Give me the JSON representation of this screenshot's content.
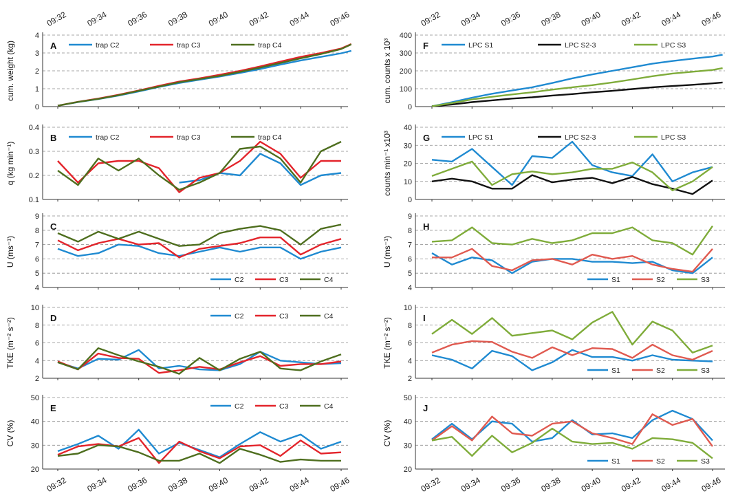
{
  "chart_data": [
    {
      "panel": "A",
      "type": "line",
      "ylabel": "cum. weight (kg)",
      "ylim": [
        0,
        4
      ],
      "yticks": [
        0,
        1,
        2,
        3,
        4
      ],
      "legend": "top",
      "x": [
        "09:32",
        "09:33",
        "09:34",
        "09:35",
        "09:36",
        "09:37",
        "09:38",
        "09:39",
        "09:40",
        "09:41",
        "09:42",
        "09:43",
        "09:44",
        "09:45",
        "09:46",
        "09:46.5"
      ],
      "series": [
        {
          "name": "trap C2",
          "color": "#1f8ad1",
          "values": [
            0.05,
            0.25,
            0.42,
            0.62,
            0.85,
            1.1,
            1.32,
            1.5,
            1.68,
            1.88,
            2.1,
            2.35,
            2.58,
            2.78,
            2.98,
            3.12
          ]
        },
        {
          "name": "trap C3",
          "color": "#e3242b",
          "values": [
            0.05,
            0.27,
            0.45,
            0.66,
            0.9,
            1.16,
            1.4,
            1.58,
            1.78,
            2.0,
            2.25,
            2.52,
            2.78,
            3.0,
            3.25,
            3.5
          ]
        },
        {
          "name": "trap C4",
          "color": "#4e6e1e",
          "values": [
            0.05,
            0.26,
            0.43,
            0.64,
            0.88,
            1.12,
            1.36,
            1.54,
            1.72,
            1.94,
            2.18,
            2.44,
            2.7,
            2.94,
            3.22,
            3.48
          ]
        }
      ]
    },
    {
      "panel": "B",
      "type": "line",
      "ylabel": "q (kg min⁻¹)",
      "ylim": [
        0.1,
        0.4
      ],
      "yticks": [
        0.1,
        0.2,
        0.3,
        0.4
      ],
      "legend": "top",
      "x": [
        "09:32",
        "09:33",
        "09:34",
        "09:35",
        "09:36",
        "09:37",
        "09:38",
        "09:39",
        "09:40",
        "09:41",
        "09:42",
        "09:43",
        "09:44",
        "09:45",
        "09:46"
      ],
      "series": [
        {
          "name": "trap C2",
          "color": "#1f8ad1",
          "values": [
            null,
            null,
            null,
            null,
            null,
            null,
            0.17,
            0.18,
            0.21,
            0.2,
            0.29,
            0.25,
            0.16,
            0.2,
            0.21
          ]
        },
        {
          "name": "trap C3",
          "color": "#e3242b",
          "values": [
            0.26,
            0.17,
            0.25,
            0.26,
            0.26,
            0.23,
            0.13,
            0.19,
            0.21,
            0.26,
            0.34,
            0.29,
            0.19,
            0.26,
            0.26
          ]
        },
        {
          "name": "trap C4",
          "color": "#4e6e1e",
          "values": [
            0.22,
            0.16,
            0.27,
            0.22,
            0.27,
            0.2,
            0.14,
            0.17,
            0.21,
            0.31,
            0.32,
            0.27,
            0.17,
            0.3,
            0.34
          ]
        }
      ]
    },
    {
      "panel": "C",
      "type": "line",
      "ylabel": "U (ms⁻¹)",
      "ylim": [
        4,
        9
      ],
      "yticks": [
        4,
        5,
        6,
        7,
        8,
        9
      ],
      "legend": "bottom-right",
      "x": [
        "09:32",
        "09:33",
        "09:34",
        "09:35",
        "09:36",
        "09:37",
        "09:38",
        "09:39",
        "09:40",
        "09:41",
        "09:42",
        "09:43",
        "09:44",
        "09:45",
        "09:46"
      ],
      "series": [
        {
          "name": "C2",
          "color": "#1f8ad1",
          "values": [
            6.7,
            6.2,
            6.4,
            7.0,
            6.9,
            6.4,
            6.2,
            6.5,
            6.8,
            6.5,
            6.8,
            6.8,
            6.0,
            6.5,
            6.8
          ]
        },
        {
          "name": "C3",
          "color": "#e3242b",
          "values": [
            7.3,
            6.6,
            7.1,
            7.4,
            7.0,
            7.1,
            6.1,
            6.7,
            6.9,
            7.1,
            7.5,
            7.5,
            6.3,
            7.0,
            7.4
          ]
        },
        {
          "name": "C4",
          "color": "#4e6e1e",
          "values": [
            7.8,
            7.2,
            7.9,
            7.4,
            7.9,
            7.4,
            6.9,
            7.0,
            7.8,
            8.1,
            8.3,
            8.0,
            7.0,
            8.1,
            8.4
          ]
        }
      ]
    },
    {
      "panel": "D",
      "type": "line",
      "ylabel": "TKE (m⁻² s⁻²)",
      "ylim": [
        2,
        10
      ],
      "yticks": [
        2,
        4,
        6,
        8,
        10
      ],
      "legend": "top-right",
      "x": [
        "09:32",
        "09:33",
        "09:34",
        "09:35",
        "09:36",
        "09:37",
        "09:38",
        "09:39",
        "09:40",
        "09:41",
        "09:42",
        "09:43",
        "09:44",
        "09:45",
        "09:46"
      ],
      "series": [
        {
          "name": "C2",
          "color": "#1f8ad1",
          "values": [
            3.8,
            3.1,
            4.2,
            4.1,
            5.2,
            3.1,
            3.4,
            3.0,
            2.9,
            3.6,
            5.0,
            4.0,
            3.8,
            3.6,
            3.7
          ]
        },
        {
          "name": "C3",
          "color": "#e3242b",
          "values": [
            3.9,
            3.0,
            4.8,
            4.3,
            4.2,
            2.6,
            2.9,
            3.3,
            3.0,
            3.8,
            4.5,
            3.4,
            3.6,
            3.6,
            3.9
          ]
        },
        {
          "name": "C4",
          "color": "#4e6e1e",
          "values": [
            3.8,
            3.0,
            5.4,
            4.6,
            3.9,
            3.3,
            2.5,
            4.3,
            2.9,
            4.2,
            5.0,
            3.1,
            2.9,
            3.9,
            4.7
          ]
        }
      ]
    },
    {
      "panel": "E",
      "type": "line",
      "ylabel": "CV (%)",
      "ylim": [
        20,
        50
      ],
      "yticks": [
        20,
        30,
        40,
        50
      ],
      "legend": "top-right",
      "x": [
        "09:32",
        "09:33",
        "09:34",
        "09:35",
        "09:36",
        "09:37",
        "09:38",
        "09:39",
        "09:40",
        "09:41",
        "09:42",
        "09:43",
        "09:44",
        "09:45",
        "09:46"
      ],
      "series": [
        {
          "name": "C2",
          "color": "#1f8ad1",
          "values": [
            27.5,
            30.5,
            34,
            28.5,
            36.5,
            26.5,
            31,
            28,
            25,
            30.5,
            35.5,
            31.5,
            34.5,
            28.5,
            31.5
          ]
        },
        {
          "name": "C3",
          "color": "#e3242b",
          "values": [
            26,
            29.5,
            30.5,
            29.5,
            33,
            22.5,
            31.5,
            27.5,
            24.5,
            29.5,
            30,
            25.5,
            32,
            26.5,
            27
          ]
        },
        {
          "name": "C4",
          "color": "#4e6e1e",
          "values": [
            25.5,
            26.5,
            30,
            29.5,
            27,
            23.5,
            23.5,
            26.5,
            22.5,
            28.5,
            26,
            23,
            24,
            23.5,
            23.5
          ]
        }
      ]
    },
    {
      "panel": "F",
      "type": "line",
      "ylabel": "cum. counts x 10³",
      "ylim": [
        0,
        400
      ],
      "yticks": [
        0,
        100,
        200,
        300,
        400
      ],
      "legend": "top",
      "x": [
        "09:32",
        "09:33",
        "09:34",
        "09:35",
        "09:36",
        "09:37",
        "09:38",
        "09:39",
        "09:40",
        "09:41",
        "09:42",
        "09:43",
        "09:44",
        "09:45",
        "09:46",
        "09:46.5"
      ],
      "series": [
        {
          "name": "LPC S1",
          "color": "#1f8ad1",
          "values": [
            2,
            25,
            50,
            72,
            90,
            108,
            132,
            158,
            180,
            200,
            220,
            240,
            255,
            268,
            280,
            290
          ]
        },
        {
          "name": "LPC S2-3",
          "color": "#111111",
          "values": [
            2,
            12,
            25,
            35,
            45,
            52,
            62,
            70,
            80,
            88,
            98,
            108,
            115,
            122,
            130,
            135
          ]
        },
        {
          "name": "LPC S3",
          "color": "#7fac3a",
          "values": [
            2,
            20,
            40,
            55,
            68,
            80,
            95,
            108,
            120,
            135,
            152,
            170,
            185,
            195,
            205,
            215
          ]
        }
      ]
    },
    {
      "panel": "G",
      "type": "line",
      "ylabel": "counts min⁻¹ x10³",
      "ylim": [
        0,
        40
      ],
      "yticks": [
        0,
        10,
        20,
        30,
        40
      ],
      "legend": "top",
      "x": [
        "09:32",
        "09:33",
        "09:34",
        "09:35",
        "09:36",
        "09:37",
        "09:38",
        "09:39",
        "09:40",
        "09:41",
        "09:42",
        "09:43",
        "09:44",
        "09:45",
        "09:46"
      ],
      "series": [
        {
          "name": "LPC S1",
          "color": "#1f8ad1",
          "values": [
            22,
            21,
            28,
            18,
            8,
            24,
            23,
            32,
            19,
            15,
            13,
            25,
            10,
            15,
            18
          ]
        },
        {
          "name": "LPC S2-3",
          "color": "#111111",
          "values": [
            10,
            11.5,
            10,
            6,
            6,
            13.5,
            9.5,
            11,
            12,
            9,
            12.5,
            8.5,
            6,
            3,
            10.5
          ]
        },
        {
          "name": "LPC S3",
          "color": "#7fac3a",
          "values": [
            13,
            17,
            21,
            8,
            14,
            15.5,
            14,
            15,
            17,
            17,
            20.5,
            15,
            5,
            10,
            18
          ]
        }
      ]
    },
    {
      "panel": "H",
      "type": "line",
      "ylabel": "U (ms⁻¹)",
      "ylim": [
        4,
        9
      ],
      "yticks": [
        4,
        5,
        6,
        7,
        8,
        9
      ],
      "legend": "bottom-right",
      "x": [
        "09:32",
        "09:33",
        "09:34",
        "09:35",
        "09:36",
        "09:37",
        "09:38",
        "09:39",
        "09:40",
        "09:41",
        "09:42",
        "09:43",
        "09:44",
        "09:45",
        "09:46"
      ],
      "series": [
        {
          "name": "S1",
          "color": "#1f8ad1",
          "values": [
            6.4,
            5.6,
            6.1,
            5.9,
            5.0,
            5.8,
            6.0,
            6.0,
            5.8,
            5.8,
            5.7,
            5.8,
            5.2,
            5.0,
            6.1
          ]
        },
        {
          "name": "S2",
          "color": "#e05a50",
          "values": [
            6.1,
            6.1,
            6.7,
            5.5,
            5.2,
            5.9,
            6.0,
            5.6,
            6.3,
            6.0,
            6.2,
            5.6,
            5.3,
            5.1,
            6.7
          ]
        },
        {
          "name": "S3",
          "color": "#7fac3a",
          "values": [
            7.2,
            7.3,
            8.2,
            7.1,
            7.0,
            7.4,
            7.1,
            7.3,
            7.8,
            7.8,
            8.2,
            7.3,
            7.1,
            6.3,
            8.3
          ]
        }
      ]
    },
    {
      "panel": "I",
      "type": "line",
      "ylabel": "TKE (m⁻² s⁻²)",
      "ylim": [
        2,
        10
      ],
      "yticks": [
        2,
        4,
        6,
        8,
        10
      ],
      "legend": "bottom-right",
      "x": [
        "09:32",
        "09:33",
        "09:34",
        "09:35",
        "09:36",
        "09:37",
        "09:38",
        "09:39",
        "09:40",
        "09:41",
        "09:42",
        "09:43",
        "09:44",
        "09:45",
        "09:46"
      ],
      "series": [
        {
          "name": "S1",
          "color": "#1f8ad1",
          "values": [
            4.6,
            4.1,
            3.1,
            5.1,
            4.5,
            2.9,
            3.8,
            5.2,
            4.4,
            4.4,
            4.0,
            4.6,
            4.1,
            4.0,
            3.9
          ]
        },
        {
          "name": "S2",
          "color": "#e05a50",
          "values": [
            4.9,
            5.8,
            6.2,
            6.1,
            5.0,
            4.3,
            5.5,
            4.6,
            5.4,
            5.3,
            4.3,
            5.8,
            4.6,
            4.1,
            5.1
          ]
        },
        {
          "name": "S3",
          "color": "#7fac3a",
          "values": [
            7.0,
            8.6,
            7.0,
            8.8,
            6.8,
            7.1,
            7.4,
            6.4,
            8.3,
            9.5,
            5.8,
            8.4,
            7.4,
            4.9,
            5.7
          ]
        }
      ]
    },
    {
      "panel": "J",
      "type": "line",
      "ylabel": "CV (%)",
      "ylim": [
        20,
        50
      ],
      "yticks": [
        20,
        30,
        40,
        50
      ],
      "legend": "bottom-right",
      "x": [
        "09:32",
        "09:33",
        "09:34",
        "09:35",
        "09:36",
        "09:37",
        "09:38",
        "09:39",
        "09:40",
        "09:41",
        "09:42",
        "09:43",
        "09:44",
        "09:45",
        "09:46"
      ],
      "series": [
        {
          "name": "S1",
          "color": "#1f8ad1",
          "values": [
            32.5,
            39,
            32.5,
            40,
            39,
            31.5,
            33,
            40.5,
            34.5,
            35,
            33,
            40.5,
            44.5,
            41,
            32
          ]
        },
        {
          "name": "S2",
          "color": "#e05a50",
          "values": [
            32,
            38,
            32,
            42,
            35,
            34,
            39,
            40,
            35,
            33,
            30.5,
            43,
            38.5,
            41,
            29.5
          ]
        },
        {
          "name": "S3",
          "color": "#7fac3a",
          "values": [
            32,
            33.5,
            25.5,
            34,
            27,
            31,
            37,
            31.5,
            30.5,
            31,
            28.5,
            33,
            32.5,
            31,
            24.5
          ]
        }
      ]
    }
  ],
  "time_ticks": [
    "09:32",
    "09:34",
    "09:36",
    "09:38",
    "09:40",
    "09:42",
    "09:44",
    "09:46"
  ]
}
